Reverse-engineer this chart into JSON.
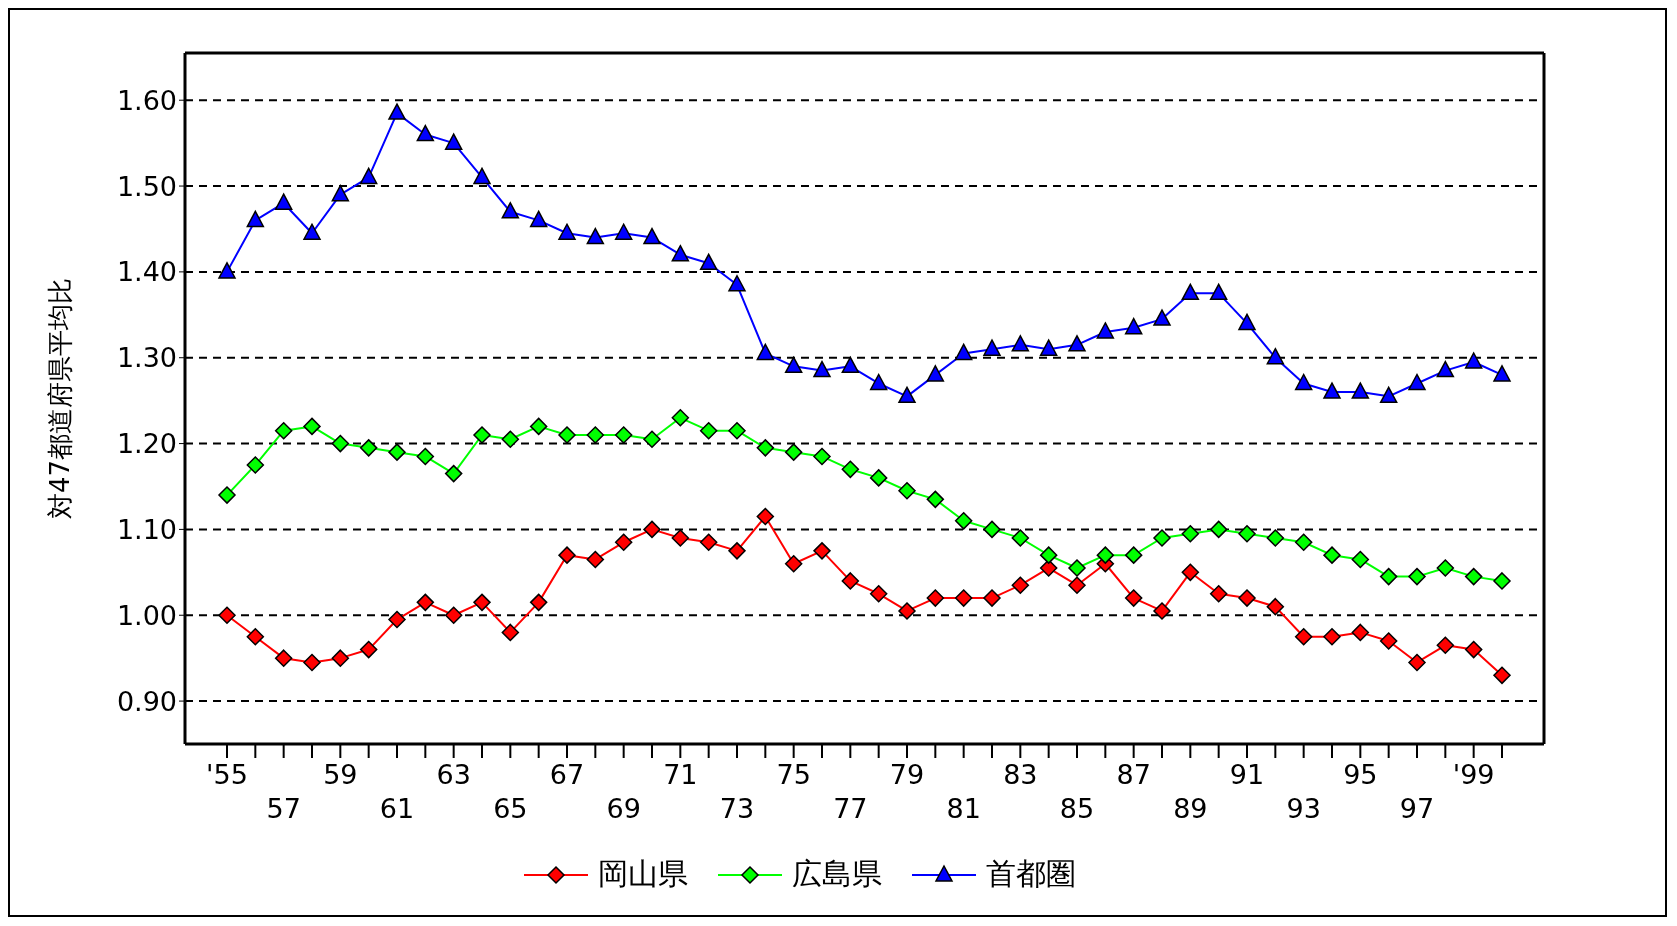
{
  "chart_data": {
    "type": "line",
    "ylabel": "対47都道府県平均比",
    "categories": [
      "'55",
      null,
      "57",
      null,
      "59",
      null,
      "61",
      null,
      "63",
      null,
      "65",
      null,
      "67",
      null,
      "69",
      null,
      "71",
      null,
      "73",
      null,
      "75",
      null,
      "77",
      null,
      "79",
      null,
      "81",
      null,
      "83",
      null,
      "85",
      null,
      "87",
      null,
      "89",
      null,
      "91",
      null,
      "93",
      null,
      "95",
      null,
      "97",
      null,
      "'99",
      null
    ],
    "series": [
      {
        "name": "岡山県",
        "color": "#ff0000",
        "marker": "diamond",
        "values": [
          1.0,
          0.975,
          0.95,
          0.945,
          0.95,
          0.96,
          0.995,
          1.015,
          1.0,
          1.015,
          0.98,
          1.015,
          1.07,
          1.065,
          1.085,
          1.1,
          1.09,
          1.085,
          1.075,
          1.115,
          1.06,
          1.075,
          1.04,
          1.025,
          1.005,
          1.02,
          1.02,
          1.02,
          1.035,
          1.055,
          1.035,
          1.06,
          1.02,
          1.005,
          1.05,
          1.025,
          1.02,
          1.01,
          0.975,
          0.975,
          0.98,
          0.97,
          0.945,
          0.965,
          0.96,
          0.93
        ]
      },
      {
        "name": "広島県",
        "color": "#00ff00",
        "marker": "diamond",
        "values": [
          1.14,
          1.175,
          1.215,
          1.22,
          1.2,
          1.195,
          1.19,
          1.185,
          1.165,
          1.21,
          1.205,
          1.22,
          1.21,
          1.21,
          1.21,
          1.205,
          1.23,
          1.215,
          1.215,
          1.195,
          1.19,
          1.185,
          1.17,
          1.16,
          1.145,
          1.135,
          1.11,
          1.1,
          1.09,
          1.07,
          1.055,
          1.07,
          1.07,
          1.09,
          1.095,
          1.1,
          1.095,
          1.09,
          1.085,
          1.07,
          1.065,
          1.045,
          1.045,
          1.055,
          1.045,
          1.04
        ]
      },
      {
        "name": "首都圏",
        "color": "#0000ff",
        "marker": "triangle",
        "values": [
          1.4,
          1.46,
          1.48,
          1.445,
          1.49,
          1.51,
          1.585,
          1.56,
          1.55,
          1.51,
          1.47,
          1.46,
          1.445,
          1.44,
          1.445,
          1.44,
          1.42,
          1.41,
          1.385,
          1.305,
          1.29,
          1.285,
          1.29,
          1.27,
          1.255,
          1.28,
          1.305,
          1.31,
          1.315,
          1.31,
          1.315,
          1.33,
          1.335,
          1.345,
          1.375,
          1.375,
          1.34,
          1.3,
          1.27,
          1.26,
          1.26,
          1.255,
          1.27,
          1.285,
          1.295,
          1.28
        ]
      }
    ],
    "ylim": [
      0.85,
      1.655
    ],
    "yticks": [
      {
        "value": 0.9,
        "label": "0.90"
      },
      {
        "value": 1.0,
        "label": "1.00"
      },
      {
        "value": 1.1,
        "label": "1.10"
      },
      {
        "value": 1.2,
        "label": "1.20"
      },
      {
        "value": 1.3,
        "label": "1.30"
      },
      {
        "value": 1.4,
        "label": "1.40"
      },
      {
        "value": 1.5,
        "label": "1.50"
      },
      {
        "value": 1.6,
        "label": "1.60"
      }
    ],
    "grid": "y",
    "legend": "bottom",
    "line_style": "solid"
  }
}
